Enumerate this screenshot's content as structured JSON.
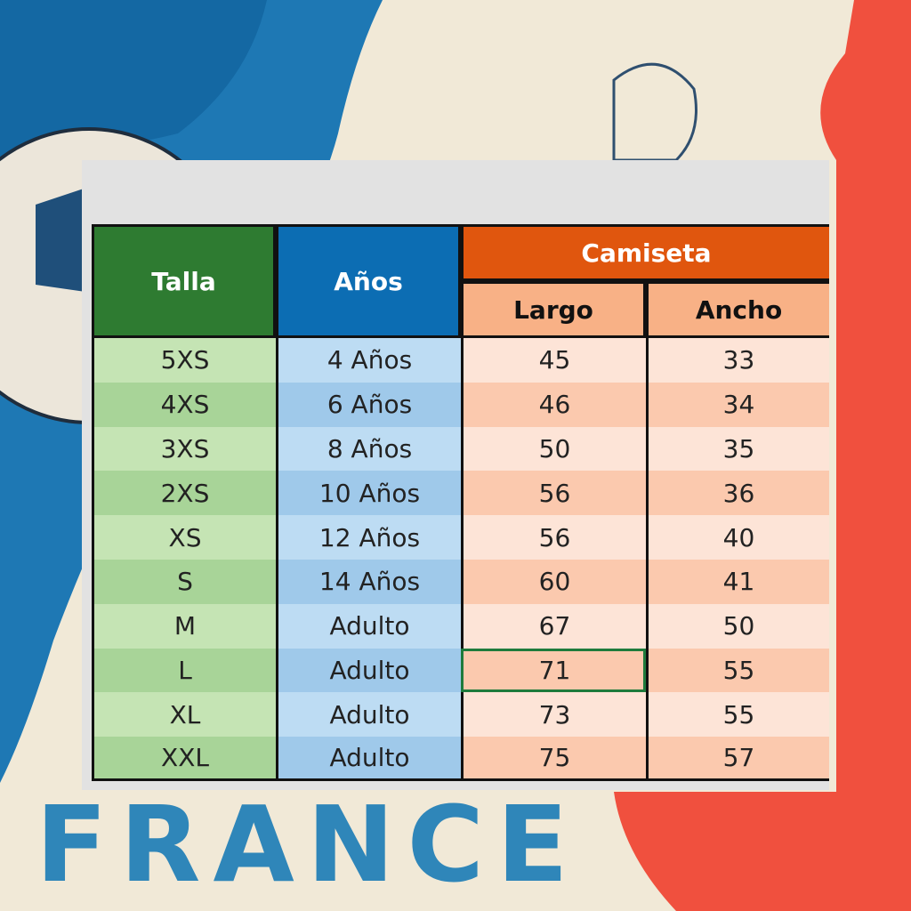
{
  "table": {
    "headers": {
      "talla": "Talla",
      "anos": "Años",
      "group": "Camiseta",
      "largo": "Largo",
      "ancho": "Ancho"
    },
    "rows": [
      [
        "5XS",
        "4 Años",
        45,
        33
      ],
      [
        "4XS",
        "6 Años",
        46,
        34
      ],
      [
        "3XS",
        "8 Años",
        50,
        35
      ],
      [
        "2XS",
        "10 Años",
        56,
        36
      ],
      [
        "XS",
        "12 Años",
        56,
        40
      ],
      [
        "S",
        "14 Años",
        60,
        41
      ],
      [
        "M",
        "Adulto",
        67,
        50
      ],
      [
        "L",
        "Adulto",
        71,
        55
      ],
      [
        "XL",
        "Adulto",
        73,
        55
      ],
      [
        "XXL",
        "Adulto",
        75,
        57
      ]
    ]
  },
  "brand": "FRANCE"
}
